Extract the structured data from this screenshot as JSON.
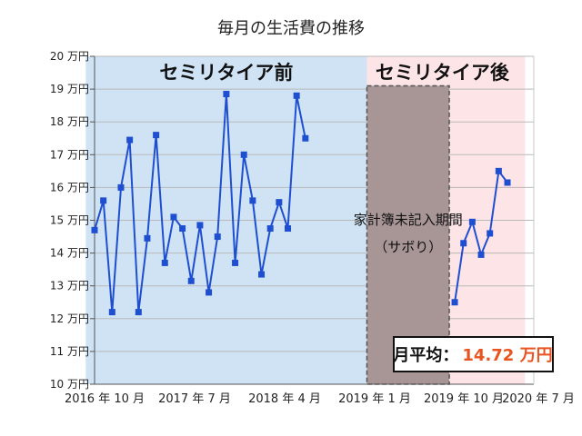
{
  "chart_data": {
    "type": "line",
    "title": "毎月の生活費の推移",
    "y_unit": "万円",
    "ylim": [
      10,
      20
    ],
    "y_ticks": [
      10,
      11,
      12,
      13,
      14,
      15,
      16,
      17,
      18,
      19,
      20
    ],
    "x_tick_labels": [
      "2016 年 10 月",
      "2017 年 7 月",
      "2018 年 4 月",
      "2019 年 1 月",
      "2019 年 10 月",
      "2020 年 7 月"
    ],
    "grid": true,
    "regions": [
      {
        "label": "セミリタイア前",
        "from": "2016-07",
        "to": "2019-03",
        "color": "#cfe3f4"
      },
      {
        "label": "セミリタイア後",
        "from": "2019-03",
        "to": "2020-09",
        "color": "#fde4e6"
      }
    ],
    "gap": {
      "label_line1": "家計簿未記入期間",
      "label_line2": "（サボり）",
      "from": "2019-03",
      "to": "2020-01",
      "color": "#a89596"
    },
    "summary": {
      "label": "月平均：",
      "value": "14.72 万円",
      "value_color": "#e8531f"
    },
    "series_color": "#1f4fd1",
    "series": [
      {
        "points": [
          [
            "2016-08",
            14.7
          ],
          [
            "2016-09",
            15.6
          ],
          [
            "2016-10",
            12.2
          ],
          [
            "2016-11",
            16.0
          ],
          [
            "2016-12",
            17.45
          ],
          [
            "2017-01",
            12.2
          ],
          [
            "2017-02",
            14.45
          ],
          [
            "2017-03",
            17.6
          ],
          [
            "2017-04",
            13.7
          ],
          [
            "2017-05",
            15.1
          ],
          [
            "2017-06",
            14.75
          ],
          [
            "2017-07",
            13.15
          ],
          [
            "2017-08",
            14.85
          ],
          [
            "2017-09",
            12.8
          ],
          [
            "2017-10",
            14.5
          ],
          [
            "2017-11",
            18.85
          ],
          [
            "2017-12",
            13.7
          ],
          [
            "2018-01",
            17.0
          ],
          [
            "2018-02",
            15.6
          ],
          [
            "2018-03",
            13.35
          ],
          [
            "2018-04",
            14.75
          ],
          [
            "2018-05",
            15.55
          ],
          [
            "2018-06",
            14.75
          ],
          [
            "2018-07",
            18.8
          ],
          [
            "2018-08",
            17.5
          ]
        ]
      },
      {
        "points": [
          [
            "2020-01",
            12.5
          ],
          [
            "2020-02",
            14.3
          ],
          [
            "2020-03",
            14.95
          ],
          [
            "2020-04",
            13.95
          ],
          [
            "2020-05",
            14.6
          ],
          [
            "2020-06",
            16.5
          ],
          [
            "2020-07",
            16.15
          ]
        ]
      }
    ]
  }
}
